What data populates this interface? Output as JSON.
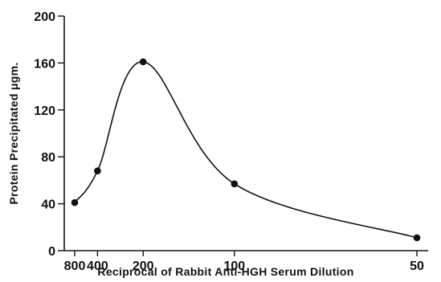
{
  "chart_data": {
    "type": "line",
    "title": "",
    "xlabel": "Reciprocal of Rabbit Anti-HGH Serum Dilution",
    "ylabel": "Protein Precipitated μgm.",
    "x_scale": "reciprocal",
    "x_ticks": [
      800,
      400,
      200,
      100,
      50
    ],
    "y_ticks": [
      0,
      40,
      80,
      120,
      160,
      200
    ],
    "ylim": [
      0,
      200
    ],
    "grid": false,
    "series": [
      {
        "x": [
          800,
          400,
          200,
          100,
          50
        ],
        "y": [
          41,
          68,
          161,
          57,
          11
        ]
      }
    ]
  }
}
